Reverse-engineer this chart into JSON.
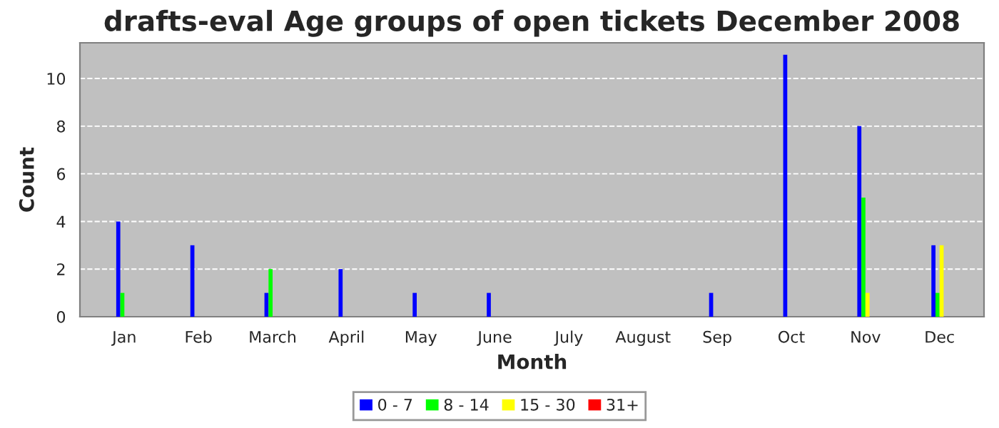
{
  "chart_data": {
    "type": "bar",
    "title": "drafts-eval Age groups of open tickets December 2008",
    "xlabel": "Month",
    "ylabel": "Count",
    "categories": [
      "Jan",
      "Feb",
      "March",
      "April",
      "May",
      "June",
      "July",
      "August",
      "Sep",
      "Oct",
      "Nov",
      "Dec"
    ],
    "series": [
      {
        "name": "0 - 7",
        "color": "#0000ff",
        "values": [
          4,
          3,
          1,
          2,
          1,
          1,
          0,
          0,
          1,
          11,
          8,
          3
        ]
      },
      {
        "name": "8 - 14",
        "color": "#00ff00",
        "values": [
          1,
          0,
          2,
          0,
          0,
          0,
          0,
          0,
          0,
          0,
          5,
          1
        ]
      },
      {
        "name": "15 - 30",
        "color": "#ffff00",
        "values": [
          0,
          0,
          0,
          0,
          0,
          0,
          0,
          0,
          0,
          0,
          1,
          3
        ]
      },
      {
        "name": "31+",
        "color": "#ff0000",
        "values": [
          0,
          0,
          0,
          0,
          0,
          0,
          0,
          0,
          0,
          0,
          0,
          0
        ]
      }
    ],
    "ylim": [
      0,
      11.5
    ],
    "yticks": [
      0,
      2,
      4,
      6,
      8,
      10
    ],
    "grid": "y",
    "legend": "bottom"
  }
}
